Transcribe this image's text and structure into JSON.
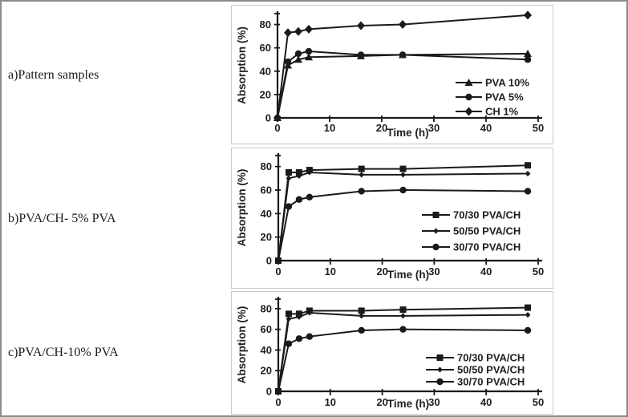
{
  "figure": {
    "panels": [
      {
        "label": "a)Pattern samples"
      },
      {
        "label": "b)PVA/CH- 5% PVA"
      },
      {
        "label": "c)PVA/CH-10% PVA"
      }
    ]
  },
  "colors": {
    "series": "#1a1a1a",
    "axis": "#1a1a1a",
    "text": "#1f1f1f",
    "chart_border": "#c9c9c9",
    "outer_border": "#8c8c8c"
  },
  "chart_data": [
    {
      "type": "line",
      "title": "",
      "xlabel": "Time (h)",
      "ylabel": "Absorption (%)",
      "x": [
        0,
        2,
        4,
        6,
        16,
        24,
        48
      ],
      "xlim": [
        0,
        50
      ],
      "ylim": [
        0,
        90
      ],
      "xticks": [
        0,
        10,
        20,
        30,
        40,
        50
      ],
      "yticks": [
        0,
        20,
        40,
        60,
        80
      ],
      "grid": false,
      "legend_position": "lower right",
      "series": [
        {
          "name": "PVA 10%",
          "marker": "triangle",
          "values": [
            0,
            45,
            50,
            52,
            53,
            54,
            55
          ]
        },
        {
          "name": "PVA 5%",
          "marker": "circle",
          "values": [
            0,
            48,
            55,
            57,
            54,
            54,
            50
          ]
        },
        {
          "name": "CH 1%",
          "marker": "diamond",
          "values": [
            0,
            73,
            74,
            76,
            79,
            80,
            88
          ]
        }
      ]
    },
    {
      "type": "line",
      "title": "",
      "xlabel": "Time (h)",
      "ylabel": "Absorption (%)",
      "x": [
        0,
        2,
        4,
        6,
        16,
        24,
        48
      ],
      "xlim": [
        0,
        50
      ],
      "ylim": [
        0,
        90
      ],
      "xticks": [
        0,
        10,
        20,
        30,
        40,
        50
      ],
      "yticks": [
        0,
        20,
        40,
        60,
        80
      ],
      "grid": false,
      "legend_position": "lower right",
      "series": [
        {
          "name": "70/30 PVA/CH",
          "marker": "square",
          "values": [
            0,
            75,
            75,
            77,
            78,
            78,
            81
          ]
        },
        {
          "name": "50/50 PVA/CH",
          "marker": "small-diamond",
          "values": [
            0,
            70,
            72,
            75,
            73,
            73,
            74
          ]
        },
        {
          "name": "30/70 PVA/CH",
          "marker": "circle",
          "values": [
            0,
            46,
            52,
            54,
            59,
            60,
            59
          ]
        }
      ]
    },
    {
      "type": "line",
      "title": "",
      "xlabel": "Time (h)",
      "ylabel": "Absorption (%)",
      "x": [
        0,
        2,
        4,
        6,
        16,
        24,
        48
      ],
      "xlim": [
        0,
        50
      ],
      "ylim": [
        0,
        90
      ],
      "xticks": [
        0,
        10,
        20,
        30,
        40,
        50
      ],
      "yticks": [
        0,
        20,
        40,
        60,
        80
      ],
      "grid": false,
      "legend_position": "lower right",
      "series": [
        {
          "name": "70/30 PVA/CH",
          "marker": "square",
          "values": [
            0,
            75,
            75,
            78,
            78,
            79,
            81
          ]
        },
        {
          "name": "50/50 PVA/CH",
          "marker": "small-diamond",
          "values": [
            0,
            70,
            72,
            76,
            73,
            73,
            74
          ]
        },
        {
          "name": "30/70 PVA/CH",
          "marker": "circle",
          "values": [
            0,
            46,
            51,
            53,
            59,
            60,
            59
          ]
        }
      ]
    }
  ]
}
